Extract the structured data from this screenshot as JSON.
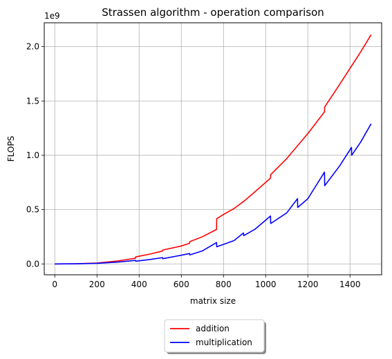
{
  "chart_data": {
    "type": "line",
    "title": "Strassen algorithm - operation comparison",
    "xlabel": "matrix size",
    "ylabel": "FLOPS",
    "y_multiplier": "1e9",
    "xlim": [
      -50,
      1550
    ],
    "ylim": [
      -0.1,
      2.22
    ],
    "xticks": [
      0,
      200,
      400,
      600,
      800,
      1000,
      1200,
      1400
    ],
    "xtick_labels": [
      "0",
      "200",
      "400",
      "600",
      "800",
      "1000",
      "1200",
      "1400"
    ],
    "yticks": [
      0.0,
      0.5,
      1.0,
      1.5,
      2.0
    ],
    "ytick_labels": [
      "0.0",
      "0.5",
      "1.0",
      "1.5",
      "2.0"
    ],
    "grid": true,
    "legend_placement": "bottom-center",
    "series": [
      {
        "name": "addition",
        "color": "#ff0000",
        "x": [
          0,
          100,
          200,
          300,
          383,
          384,
          450,
          511,
          512,
          600,
          639,
          640,
          700,
          767,
          768,
          800,
          850,
          900,
          950,
          1000,
          1023,
          1024,
          1100,
          1200,
          1279,
          1280,
          1350,
          1400,
          1450,
          1500
        ],
        "values": [
          0.0,
          0.001,
          0.008,
          0.028,
          0.052,
          0.065,
          0.09,
          0.119,
          0.128,
          0.165,
          0.19,
          0.205,
          0.25,
          0.317,
          0.417,
          0.455,
          0.51,
          0.582,
          0.665,
          0.75,
          0.79,
          0.822,
          0.97,
          1.2,
          1.4,
          1.445,
          1.65,
          1.8,
          1.95,
          2.11
        ]
      },
      {
        "name": "multiplication",
        "color": "#0000ff",
        "x": [
          0,
          100,
          200,
          300,
          383,
          384,
          450,
          511,
          512,
          600,
          639,
          640,
          700,
          767,
          768,
          800,
          850,
          895,
          896,
          950,
          1023,
          1024,
          1100,
          1151,
          1152,
          1200,
          1279,
          1280,
          1350,
          1407,
          1408,
          1450,
          1500
        ],
        "values": [
          0.0,
          0.001,
          0.005,
          0.017,
          0.032,
          0.025,
          0.04,
          0.058,
          0.048,
          0.08,
          0.096,
          0.083,
          0.12,
          0.197,
          0.158,
          0.18,
          0.215,
          0.285,
          0.26,
          0.32,
          0.441,
          0.372,
          0.47,
          0.601,
          0.52,
          0.6,
          0.845,
          0.72,
          0.9,
          1.072,
          1.0,
          1.12,
          1.29
        ]
      }
    ]
  }
}
